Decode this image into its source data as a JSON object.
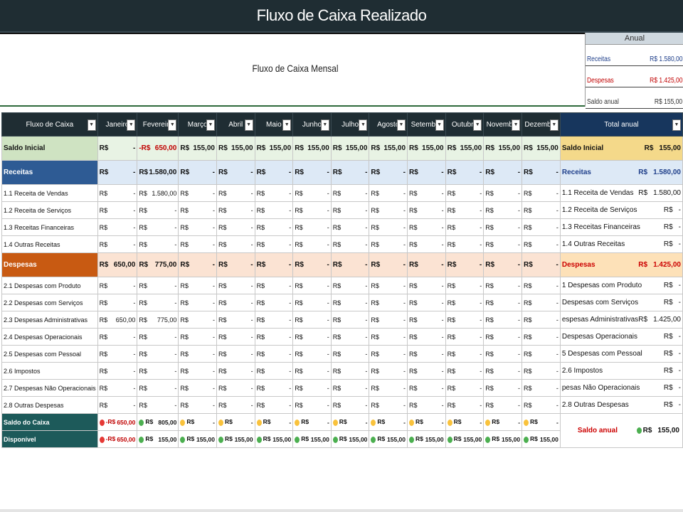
{
  "title": "Fluxo de Caixa Realizado",
  "subtitle": "Fluxo de Caixa Mensal",
  "anual": {
    "header": "Anual",
    "rows": [
      {
        "label": "Receitas",
        "value": "R$ 1.580,00",
        "color": "#1f3f8a"
      },
      {
        "label": "Despesas",
        "value": "R$ 1.425,00",
        "color": "#c00000"
      },
      {
        "label": "Saldo anual",
        "value": "R$ 155,00",
        "color": "#333333"
      }
    ]
  },
  "columns": {
    "label": "Fluxo de Caixa",
    "months": [
      "Janeiro",
      "Fevereiro",
      "Março",
      "Abril",
      "Maio",
      "Junho",
      "Julho",
      "Agosto",
      "Setembro",
      "Outubro",
      "Novembro",
      "Dezembro"
    ],
    "total": "Total anual"
  },
  "currency": "R$",
  "rows": [
    {
      "label": "Saldo Inicial",
      "kind": "sal",
      "values": [
        "-",
        "-R$|650,00",
        "155,00",
        "155,00",
        "155,00",
        "155,00",
        "155,00",
        "155,00",
        "155,00",
        "155,00",
        "155,00",
        "155,00"
      ],
      "total_label": "Saldo Inicial",
      "total": "155,00"
    },
    {
      "label": "Receitas",
      "kind": "rec",
      "values": [
        "-",
        "1.580,00",
        "-",
        "-",
        "-",
        "-",
        "-",
        "-",
        "-",
        "-",
        "-",
        "-"
      ],
      "total_label": "Receitas",
      "total": "1.580,00"
    },
    {
      "label": "1.1 Receita de Vendas",
      "kind": "sub",
      "values": [
        "-",
        "1.580,00",
        "-",
        "-",
        "-",
        "-",
        "-",
        "-",
        "-",
        "-",
        "-",
        "-"
      ],
      "total_label": "1.1 Receita de Vendas",
      "total": "1.580,00"
    },
    {
      "label": "1.2 Receita de Serviços",
      "kind": "sub",
      "values": [
        "-",
        "-",
        "-",
        "-",
        "-",
        "-",
        "-",
        "-",
        "-",
        "-",
        "-",
        "-"
      ],
      "total_label": "1.2 Receita de Serviços",
      "total": "-"
    },
    {
      "label": "1.3 Receitas Financeiras",
      "kind": "sub",
      "values": [
        "-",
        "-",
        "-",
        "-",
        "-",
        "-",
        "-",
        "-",
        "-",
        "-",
        "-",
        "-"
      ],
      "total_label": "1.3 Receitas Financeiras",
      "total": "-"
    },
    {
      "label": "1.4 Outras Receitas",
      "kind": "sub",
      "values": [
        "-",
        "-",
        "-",
        "-",
        "-",
        "-",
        "-",
        "-",
        "-",
        "-",
        "-",
        "-"
      ],
      "total_label": "1.4 Outras Receitas",
      "total": "-"
    },
    {
      "label": "Despesas",
      "kind": "des",
      "values": [
        "650,00",
        "775,00",
        "-",
        "-",
        "-",
        "-",
        "-",
        "-",
        "-",
        "-",
        "-",
        "-"
      ],
      "total_label": "Despesas",
      "total": "1.425,00"
    },
    {
      "label": "2.1 Despesas com Produto",
      "kind": "sub",
      "values": [
        "-",
        "-",
        "-",
        "-",
        "-",
        "-",
        "-",
        "-",
        "-",
        "-",
        "-",
        "-"
      ],
      "total_label": "1 Despesas com Produto",
      "total": "-"
    },
    {
      "label": "2.2 Despesas com Serviços",
      "kind": "sub",
      "values": [
        "-",
        "-",
        "-",
        "-",
        "-",
        "-",
        "-",
        "-",
        "-",
        "-",
        "-",
        "-"
      ],
      "total_label": "Despesas com Serviços",
      "total": "-"
    },
    {
      "label": "2.3 Despesas Administrativas",
      "kind": "sub",
      "values": [
        "650,00",
        "775,00",
        "-",
        "-",
        "-",
        "-",
        "-",
        "-",
        "-",
        "-",
        "-",
        "-"
      ],
      "total_label": "espesas Administrativas",
      "total": "1.425,00"
    },
    {
      "label": "2.4 Despesas Operacionais",
      "kind": "sub",
      "values": [
        "-",
        "-",
        "-",
        "-",
        "-",
        "-",
        "-",
        "-",
        "-",
        "-",
        "-",
        "-"
      ],
      "total_label": "Despesas Operacionais",
      "total": "-"
    },
    {
      "label": "2.5 Despesas com Pessoal",
      "kind": "sub",
      "values": [
        "-",
        "-",
        "-",
        "-",
        "-",
        "-",
        "-",
        "-",
        "-",
        "-",
        "-",
        "-"
      ],
      "total_label": "5 Despesas com Pessoal",
      "total": "-"
    },
    {
      "label": "2.6 Impostos",
      "kind": "sub",
      "values": [
        "-",
        "-",
        "-",
        "-",
        "-",
        "-",
        "-",
        "-",
        "-",
        "-",
        "-",
        "-"
      ],
      "total_label": "2.6 Impostos",
      "total": "-"
    },
    {
      "label": "2.7 Despesas Não Operacionais",
      "kind": "sub",
      "values": [
        "-",
        "-",
        "-",
        "-",
        "-",
        "-",
        "-",
        "-",
        "-",
        "-",
        "-",
        "-"
      ],
      "total_label": "pesas Não Operacionais",
      "total": "-"
    },
    {
      "label": "2.8 Outras Despesas",
      "kind": "sub",
      "values": [
        "-",
        "-",
        "-",
        "-",
        "-",
        "-",
        "-",
        "-",
        "-",
        "-",
        "-",
        "-"
      ],
      "total_label": "2.8 Outras Despesas",
      "total": "-"
    }
  ],
  "footer": {
    "saldo_label": "Saldo do Caixa",
    "saldo": [
      {
        "dot": "red",
        "prefix": "-R$",
        "value": "650,00",
        "neg": true
      },
      {
        "dot": "green",
        "prefix": "R$",
        "value": "805,00",
        "neg": false
      },
      {
        "dot": "yellow",
        "prefix": "R$",
        "value": "-",
        "neg": false
      },
      {
        "dot": "yellow",
        "prefix": "R$",
        "value": "-",
        "neg": false
      },
      {
        "dot": "yellow",
        "prefix": "R$",
        "value": "-",
        "neg": false
      },
      {
        "dot": "yellow",
        "prefix": "R$",
        "value": "-",
        "neg": false
      },
      {
        "dot": "yellow",
        "prefix": "R$",
        "value": "-",
        "neg": false
      },
      {
        "dot": "yellow",
        "prefix": "R$",
        "value": "-",
        "neg": false
      },
      {
        "dot": "yellow",
        "prefix": "R$",
        "value": "-",
        "neg": false
      },
      {
        "dot": "yellow",
        "prefix": "R$",
        "value": "-",
        "neg": false
      },
      {
        "dot": "yellow",
        "prefix": "R$",
        "value": "-",
        "neg": false
      },
      {
        "dot": "yellow",
        "prefix": "R$",
        "value": "-",
        "neg": false
      }
    ],
    "disp_label": "Disponível",
    "disp": [
      {
        "dot": "red",
        "prefix": "-R$",
        "value": "650,00",
        "neg": true
      },
      {
        "dot": "green",
        "prefix": "R$",
        "value": "155,00",
        "neg": false
      },
      {
        "dot": "green",
        "prefix": "R$",
        "value": "155,00",
        "neg": false
      },
      {
        "dot": "green",
        "prefix": "R$",
        "value": "155,00",
        "neg": false
      },
      {
        "dot": "green",
        "prefix": "R$",
        "value": "155,00",
        "neg": false
      },
      {
        "dot": "green",
        "prefix": "R$",
        "value": "155,00",
        "neg": false
      },
      {
        "dot": "green",
        "prefix": "R$",
        "value": "155,00",
        "neg": false
      },
      {
        "dot": "green",
        "prefix": "R$",
        "value": "155,00",
        "neg": false
      },
      {
        "dot": "green",
        "prefix": "R$",
        "value": "155,00",
        "neg": false
      },
      {
        "dot": "green",
        "prefix": "R$",
        "value": "155,00",
        "neg": false
      },
      {
        "dot": "green",
        "prefix": "R$",
        "value": "155,00",
        "neg": false
      },
      {
        "dot": "green",
        "prefix": "R$",
        "value": "155,00",
        "neg": false
      }
    ],
    "saldo_anual_label": "Saldo anual",
    "saldo_anual": {
      "dot": "green",
      "prefix": "R$",
      "value": "155,00"
    }
  }
}
